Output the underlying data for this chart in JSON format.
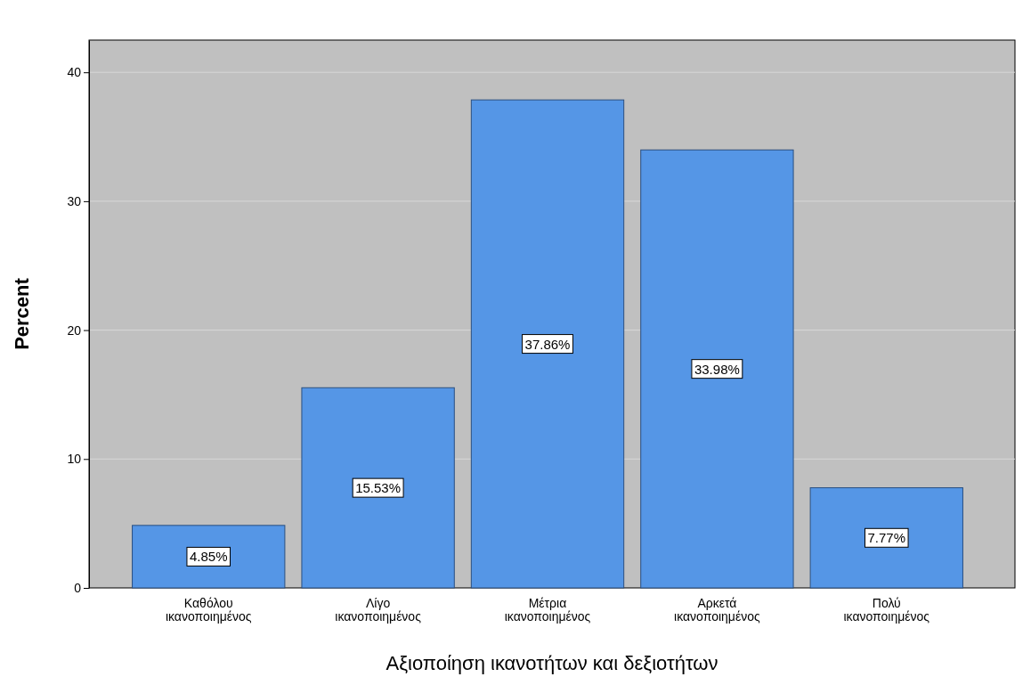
{
  "chart_data": {
    "type": "bar",
    "xlabel": "Αξιοποίηση ικανοτήτων και δεξιοτήτων",
    "ylabel": "Percent",
    "categories": [
      "Καθόλου ικανοποιημένος",
      "Λίγο ικανοποιημένος",
      "Μέτρια ικανοποιημένος",
      "Αρκετά ικανοποιημένος",
      "Πολύ ικανοποιημένος"
    ],
    "values": [
      4.85,
      15.53,
      37.86,
      33.98,
      7.77
    ],
    "value_labels": [
      "4.85%",
      "15.53%",
      "37.86%",
      "33.98%",
      "7.77%"
    ],
    "color": "#5596e6",
    "ylim": [
      0,
      42.5
    ],
    "yticks": [
      0,
      10,
      20,
      30,
      40
    ],
    "grid": "y"
  }
}
